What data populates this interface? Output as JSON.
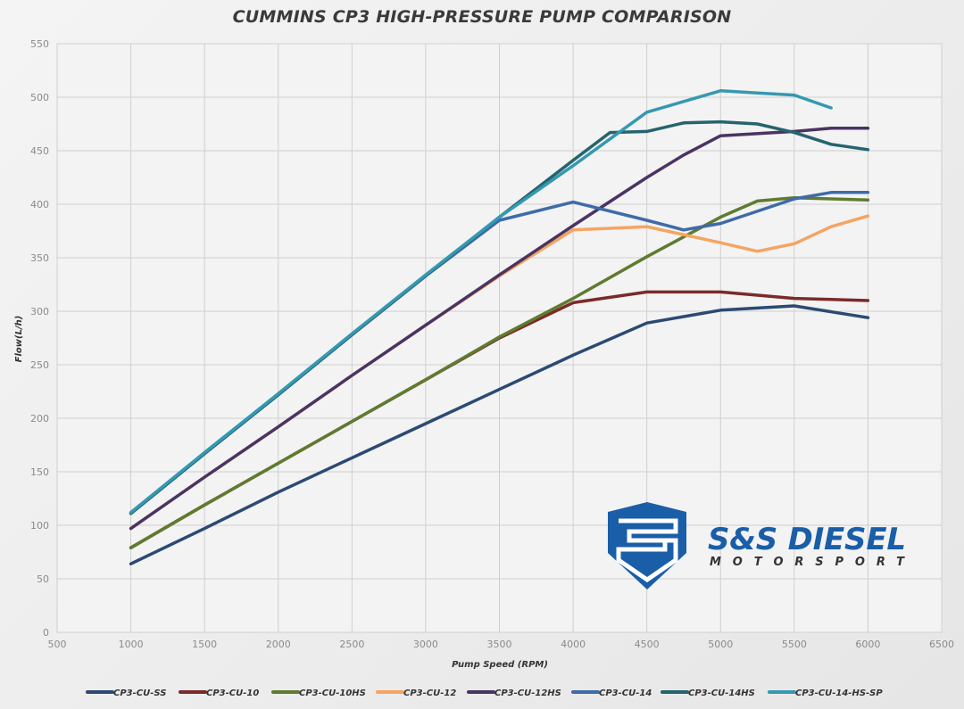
{
  "chart_data": {
    "type": "line",
    "title": "CUMMINS CP3 HIGH-PRESSURE PUMP COMPARISON",
    "xlabel": "Pump Speed (RPM)",
    "ylabel": "Flow(L/h)",
    "xlim": [
      500,
      6500
    ],
    "ylim": [
      0,
      550
    ],
    "xticks": [
      500,
      1000,
      1500,
      2000,
      2500,
      3000,
      3500,
      4000,
      4500,
      5000,
      5500,
      6000,
      6500
    ],
    "yticks": [
      0,
      50,
      100,
      150,
      200,
      250,
      300,
      350,
      400,
      450,
      500,
      550
    ],
    "grid": true,
    "legend_position": "bottom",
    "series": [
      {
        "name": "CP3-CU-SS",
        "color": "#2b4a73",
        "points": [
          [
            1000,
            64
          ],
          [
            1500,
            97
          ],
          [
            2000,
            131
          ],
          [
            2500,
            163
          ],
          [
            3000,
            195
          ],
          [
            3500,
            227
          ],
          [
            4000,
            259
          ],
          [
            4500,
            289
          ],
          [
            5000,
            301
          ],
          [
            5500,
            305
          ],
          [
            6000,
            294
          ]
        ]
      },
      {
        "name": "CP3-CU-10",
        "color": "#7b2a2a",
        "points": [
          [
            1000,
            79
          ],
          [
            1500,
            119
          ],
          [
            2000,
            158
          ],
          [
            2500,
            197
          ],
          [
            3000,
            236
          ],
          [
            3500,
            275
          ],
          [
            4000,
            308
          ],
          [
            4500,
            318
          ],
          [
            5000,
            318
          ],
          [
            5500,
            312
          ],
          [
            5750,
            311
          ],
          [
            6000,
            310
          ]
        ]
      },
      {
        "name": "CP3-CU-10HS",
        "color": "#5f7b30",
        "points": [
          [
            1000,
            79
          ],
          [
            1500,
            119
          ],
          [
            2000,
            158
          ],
          [
            2500,
            197
          ],
          [
            3000,
            236
          ],
          [
            3500,
            276
          ],
          [
            4000,
            312
          ],
          [
            4500,
            351
          ],
          [
            5000,
            388
          ],
          [
            5250,
            403
          ],
          [
            5500,
            406
          ],
          [
            6000,
            404
          ]
        ]
      },
      {
        "name": "CP3-CU-12",
        "color": "#f5a462",
        "points": [
          [
            1000,
            97
          ],
          [
            1500,
            145
          ],
          [
            2000,
            192
          ],
          [
            2500,
            240
          ],
          [
            3000,
            287
          ],
          [
            3500,
            333
          ],
          [
            4000,
            376
          ],
          [
            4500,
            379
          ],
          [
            5000,
            364
          ],
          [
            5250,
            356
          ],
          [
            5500,
            363
          ],
          [
            5750,
            379
          ],
          [
            6000,
            389
          ]
        ]
      },
      {
        "name": "CP3-CU-12HS",
        "color": "#4a3463",
        "points": [
          [
            1000,
            97
          ],
          [
            1500,
            145
          ],
          [
            2000,
            192
          ],
          [
            2500,
            240
          ],
          [
            3000,
            287
          ],
          [
            3500,
            334
          ],
          [
            4000,
            380
          ],
          [
            4500,
            425
          ],
          [
            4750,
            446
          ],
          [
            5000,
            464
          ],
          [
            5500,
            468
          ],
          [
            5750,
            471
          ],
          [
            6000,
            471
          ]
        ]
      },
      {
        "name": "CP3-CU-14",
        "color": "#3e6ba9",
        "points": [
          [
            1000,
            111
          ],
          [
            1500,
            167
          ],
          [
            2000,
            222
          ],
          [
            2500,
            278
          ],
          [
            3000,
            333
          ],
          [
            3500,
            385
          ],
          [
            4000,
            402
          ],
          [
            4500,
            385
          ],
          [
            4750,
            376
          ],
          [
            5000,
            382
          ],
          [
            5500,
            405
          ],
          [
            5750,
            411
          ],
          [
            6000,
            411
          ]
        ]
      },
      {
        "name": "CP3-CU-14HS",
        "color": "#25646f",
        "points": [
          [
            1000,
            111
          ],
          [
            1500,
            167
          ],
          [
            2000,
            222
          ],
          [
            2500,
            278
          ],
          [
            3000,
            333
          ],
          [
            3500,
            388
          ],
          [
            4000,
            441
          ],
          [
            4250,
            467
          ],
          [
            4500,
            468
          ],
          [
            4750,
            476
          ],
          [
            5000,
            477
          ],
          [
            5250,
            475
          ],
          [
            5500,
            467
          ],
          [
            5750,
            456
          ],
          [
            6000,
            451
          ]
        ]
      },
      {
        "name": "CP3-CU-14-HS-SP",
        "color": "#3698b1",
        "points": [
          [
            1000,
            112
          ],
          [
            1500,
            168
          ],
          [
            2000,
            223
          ],
          [
            2500,
            279
          ],
          [
            3000,
            334
          ],
          [
            3500,
            388
          ],
          [
            4000,
            436
          ],
          [
            4500,
            486
          ],
          [
            5000,
            506
          ],
          [
            5250,
            504
          ],
          [
            5500,
            502
          ],
          [
            5750,
            490
          ]
        ]
      }
    ]
  },
  "logo": {
    "name": "S&S DIESEL",
    "sub": "MOTORSPORT",
    "color": "#1a5ea8"
  }
}
